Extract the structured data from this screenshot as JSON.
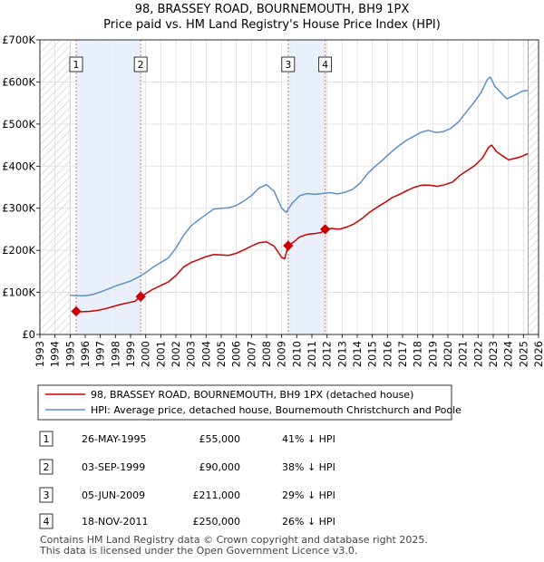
{
  "chart_data": {
    "type": "line",
    "title": "98, BRASSEY ROAD, BOURNEMOUTH, BH9 1PX",
    "subtitle": "Price paid vs. HM Land Registry's House Price Index (HPI)",
    "ylim": [
      0,
      700000
    ],
    "xlim": [
      1993,
      2026
    ],
    "y_ticks": [
      {
        "value": 0,
        "label": "£0"
      },
      {
        "value": 100000,
        "label": "£100K"
      },
      {
        "value": 200000,
        "label": "£200K"
      },
      {
        "value": 300000,
        "label": "£300K"
      },
      {
        "value": 400000,
        "label": "£400K"
      },
      {
        "value": 500000,
        "label": "£500K"
      },
      {
        "value": 600000,
        "label": "£600K"
      },
      {
        "value": 700000,
        "label": "£700K"
      }
    ],
    "x_ticks": [
      "1993",
      "1994",
      "1995",
      "1996",
      "1997",
      "1998",
      "1999",
      "2000",
      "2001",
      "2002",
      "2003",
      "2004",
      "2005",
      "2006",
      "2007",
      "2008",
      "2009",
      "2010",
      "2011",
      "2012",
      "2013",
      "2014",
      "2015",
      "2016",
      "2017",
      "2018",
      "2019",
      "2020",
      "2021",
      "2022",
      "2023",
      "2024",
      "2025",
      "2026"
    ],
    "data_range": [
      1995.0,
      2025.3
    ],
    "series": [
      {
        "name": "98, BRASSEY ROAD, BOURNEMOUTH, BH9 1PX (detached house)",
        "color": "#cc0000",
        "points": [
          [
            1995.4,
            55000
          ],
          [
            1995.8,
            54000
          ],
          [
            1996.3,
            55000
          ],
          [
            1996.8,
            57000
          ],
          [
            1997.3,
            61000
          ],
          [
            1997.8,
            66000
          ],
          [
            1998.3,
            71000
          ],
          [
            1998.8,
            75000
          ],
          [
            1999.3,
            79000
          ],
          [
            1999.67,
            90000
          ],
          [
            2000.0,
            97000
          ],
          [
            2000.5,
            108000
          ],
          [
            2001.0,
            116000
          ],
          [
            2001.5,
            125000
          ],
          [
            2002.0,
            140000
          ],
          [
            2002.5,
            160000
          ],
          [
            2003.0,
            171000
          ],
          [
            2003.5,
            178000
          ],
          [
            2004.0,
            185000
          ],
          [
            2004.5,
            190000
          ],
          [
            2005.0,
            189000
          ],
          [
            2005.5,
            188000
          ],
          [
            2006.0,
            193000
          ],
          [
            2006.5,
            201000
          ],
          [
            2007.0,
            210000
          ],
          [
            2007.5,
            218000
          ],
          [
            2008.0,
            220000
          ],
          [
            2008.5,
            210000
          ],
          [
            2009.0,
            183000
          ],
          [
            2009.2,
            180000
          ],
          [
            2009.43,
            211000
          ],
          [
            2009.8,
            220000
          ],
          [
            2010.2,
            232000
          ],
          [
            2010.7,
            238000
          ],
          [
            2011.2,
            240000
          ],
          [
            2011.6,
            242000
          ],
          [
            2011.88,
            250000
          ],
          [
            2012.3,
            252000
          ],
          [
            2012.8,
            250000
          ],
          [
            2013.3,
            255000
          ],
          [
            2013.8,
            263000
          ],
          [
            2014.3,
            275000
          ],
          [
            2014.8,
            290000
          ],
          [
            2015.3,
            302000
          ],
          [
            2015.8,
            313000
          ],
          [
            2016.3,
            325000
          ],
          [
            2016.8,
            333000
          ],
          [
            2017.3,
            342000
          ],
          [
            2017.8,
            350000
          ],
          [
            2018.3,
            355000
          ],
          [
            2018.8,
            355000
          ],
          [
            2019.3,
            352000
          ],
          [
            2019.8,
            356000
          ],
          [
            2020.3,
            362000
          ],
          [
            2020.8,
            378000
          ],
          [
            2021.3,
            390000
          ],
          [
            2021.8,
            402000
          ],
          [
            2022.3,
            420000
          ],
          [
            2022.7,
            445000
          ],
          [
            2022.9,
            450000
          ],
          [
            2023.2,
            435000
          ],
          [
            2023.6,
            425000
          ],
          [
            2024.0,
            415000
          ],
          [
            2024.4,
            418000
          ],
          [
            2024.8,
            422000
          ],
          [
            2025.0,
            425000
          ],
          [
            2025.3,
            430000
          ]
        ]
      },
      {
        "name": "HPI: Average price, detached house, Bournemouth Christchurch and Poole",
        "color": "#5b8fd0",
        "points": [
          [
            1995.0,
            93000
          ],
          [
            1995.5,
            92000
          ],
          [
            1996.0,
            92000
          ],
          [
            1996.5,
            95000
          ],
          [
            1997.0,
            101000
          ],
          [
            1997.5,
            108000
          ],
          [
            1998.0,
            115000
          ],
          [
            1998.5,
            121000
          ],
          [
            1999.0,
            127000
          ],
          [
            1999.5,
            136000
          ],
          [
            2000.0,
            147000
          ],
          [
            2000.5,
            160000
          ],
          [
            2001.0,
            171000
          ],
          [
            2001.5,
            182000
          ],
          [
            2002.0,
            205000
          ],
          [
            2002.5,
            235000
          ],
          [
            2003.0,
            258000
          ],
          [
            2003.5,
            272000
          ],
          [
            2004.0,
            285000
          ],
          [
            2004.5,
            298000
          ],
          [
            2005.0,
            300000
          ],
          [
            2005.5,
            301000
          ],
          [
            2006.0,
            307000
          ],
          [
            2006.5,
            317000
          ],
          [
            2007.0,
            330000
          ],
          [
            2007.5,
            348000
          ],
          [
            2008.0,
            356000
          ],
          [
            2008.5,
            340000
          ],
          [
            2009.0,
            300000
          ],
          [
            2009.3,
            290000
          ],
          [
            2009.7,
            312000
          ],
          [
            2010.2,
            330000
          ],
          [
            2010.7,
            335000
          ],
          [
            2011.2,
            333000
          ],
          [
            2011.7,
            335000
          ],
          [
            2012.2,
            337000
          ],
          [
            2012.7,
            334000
          ],
          [
            2013.2,
            338000
          ],
          [
            2013.7,
            345000
          ],
          [
            2014.2,
            360000
          ],
          [
            2014.7,
            383000
          ],
          [
            2015.2,
            400000
          ],
          [
            2015.7,
            415000
          ],
          [
            2016.2,
            432000
          ],
          [
            2016.7,
            447000
          ],
          [
            2017.2,
            460000
          ],
          [
            2017.7,
            470000
          ],
          [
            2018.2,
            480000
          ],
          [
            2018.7,
            485000
          ],
          [
            2019.2,
            480000
          ],
          [
            2019.7,
            482000
          ],
          [
            2020.2,
            490000
          ],
          [
            2020.7,
            505000
          ],
          [
            2021.2,
            528000
          ],
          [
            2021.7,
            550000
          ],
          [
            2022.2,
            575000
          ],
          [
            2022.6,
            605000
          ],
          [
            2022.8,
            612000
          ],
          [
            2023.1,
            590000
          ],
          [
            2023.5,
            575000
          ],
          [
            2023.9,
            560000
          ],
          [
            2024.2,
            565000
          ],
          [
            2024.6,
            572000
          ],
          [
            2024.9,
            578000
          ],
          [
            2025.3,
            580000
          ]
        ]
      }
    ],
    "transactions": [
      {
        "label": "1",
        "year": 1995.4,
        "price": 55000
      },
      {
        "label": "2",
        "year": 1999.67,
        "price": 90000
      },
      {
        "label": "3",
        "year": 2009.43,
        "price": 211000
      },
      {
        "label": "4",
        "year": 2011.88,
        "price": 250000
      }
    ],
    "shaded_spans": [
      [
        1995.4,
        1999.67
      ],
      [
        2009.43,
        2011.88
      ]
    ],
    "hatch_regions": [
      [
        1993,
        1995.0
      ],
      [
        2025.3,
        2026
      ]
    ],
    "legend": [
      "98, BRASSEY ROAD, BOURNEMOUTH, BH9 1PX (detached house)",
      "HPI: Average price, detached house, Bournemouth Christchurch and Poole"
    ]
  },
  "table": [
    {
      "num": "1",
      "date": "26-MAY-1995",
      "price": "£55,000",
      "pct": "41% ↓ HPI"
    },
    {
      "num": "2",
      "date": "03-SEP-1999",
      "price": "£90,000",
      "pct": "38% ↓ HPI"
    },
    {
      "num": "3",
      "date": "05-JUN-2009",
      "price": "£211,000",
      "pct": "29% ↓ HPI"
    },
    {
      "num": "4",
      "date": "18-NOV-2011",
      "price": "£250,000",
      "pct": "26% ↓ HPI"
    }
  ],
  "footer": {
    "line1": "Contains HM Land Registry data © Crown copyright and database right 2025.",
    "line2": "This data is licensed under the Open Government Licence v3.0."
  }
}
